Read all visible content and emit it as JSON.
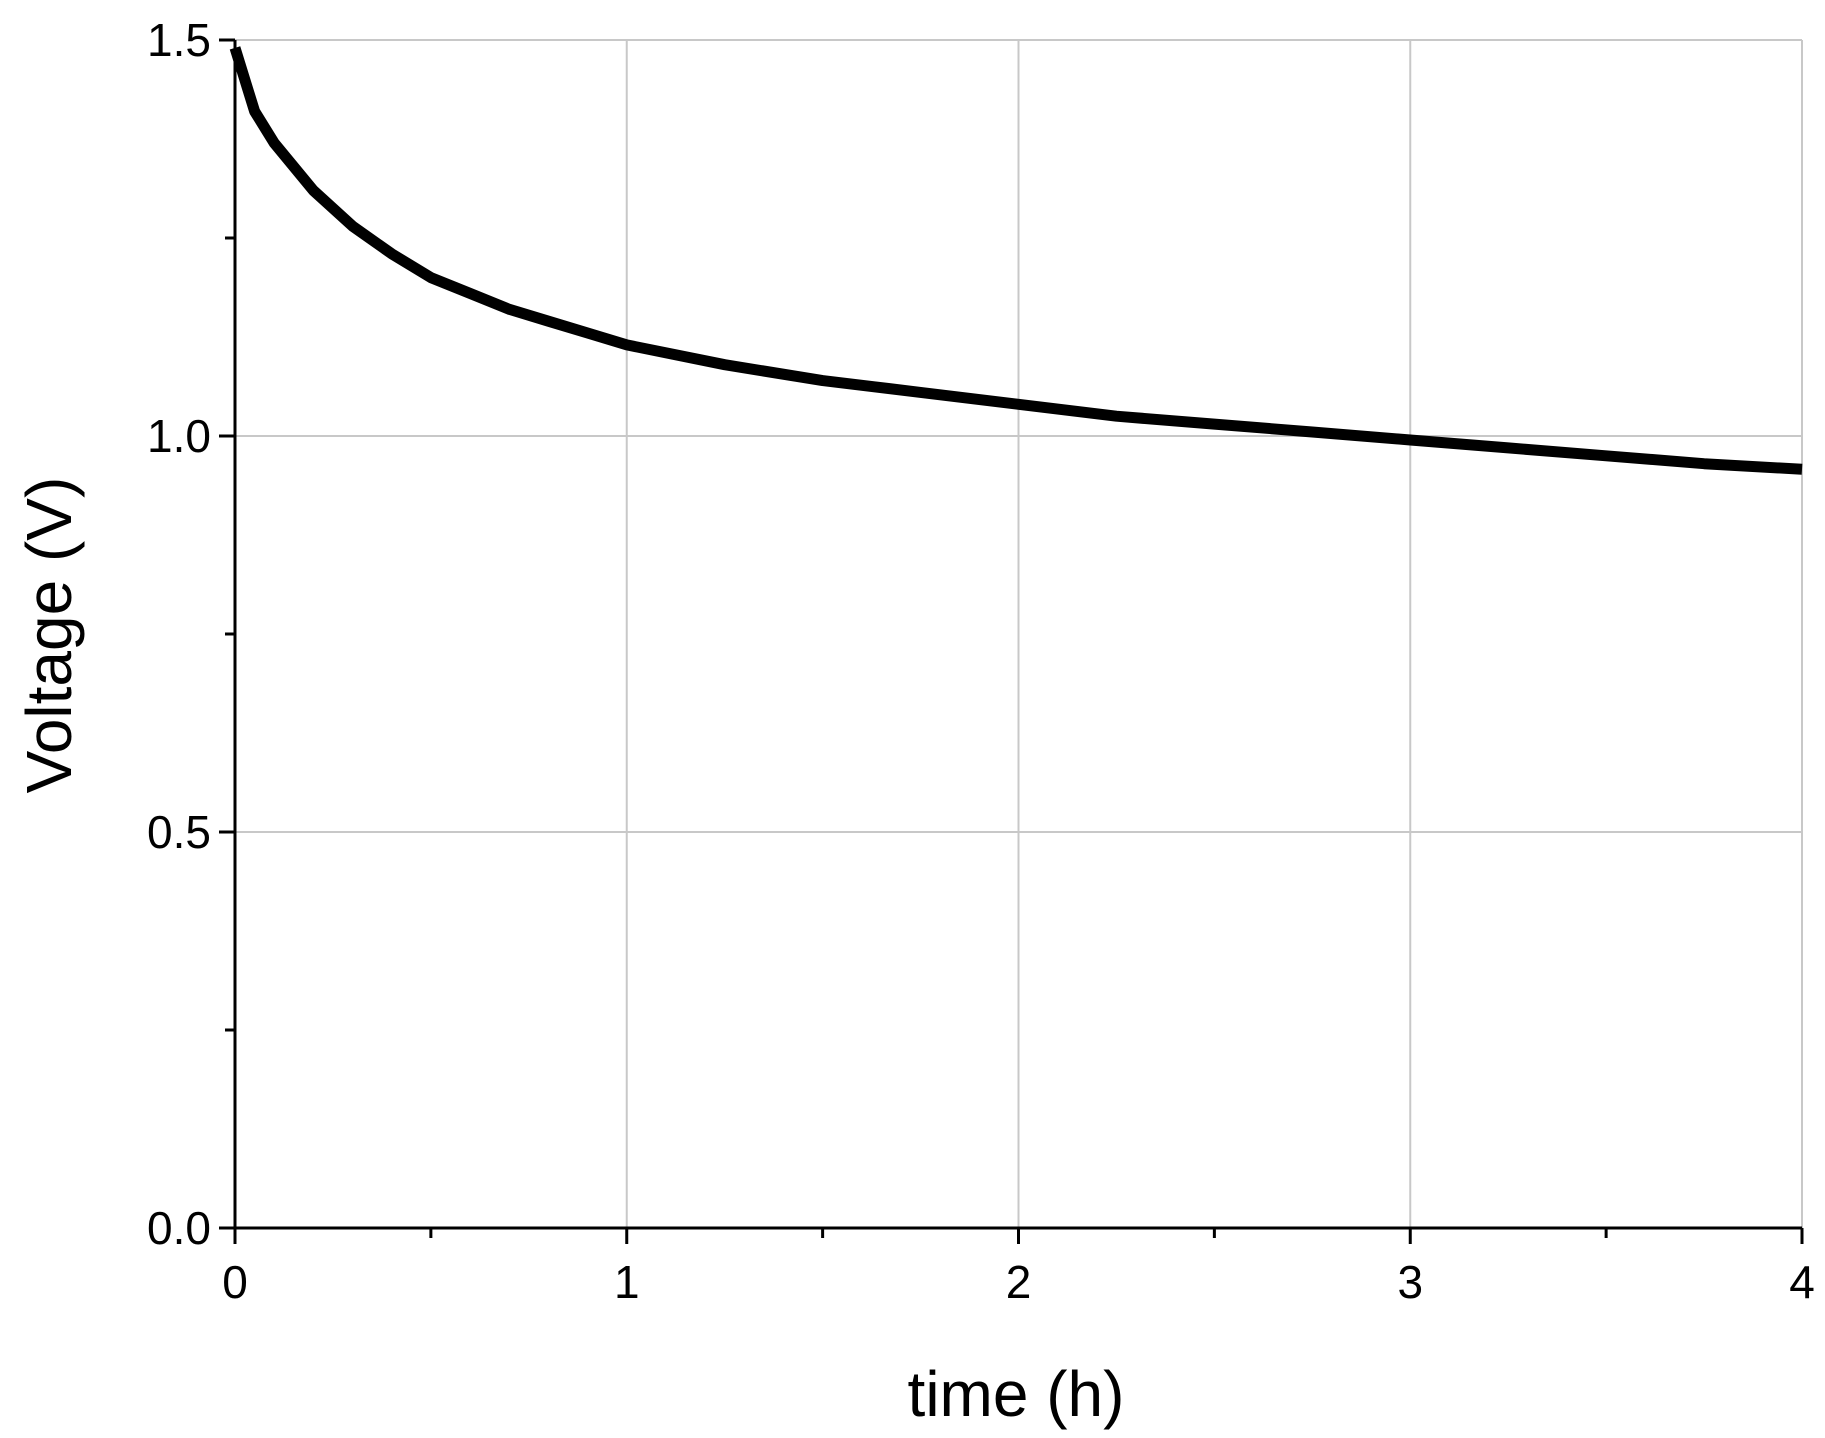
{
  "chart_data": {
    "type": "line",
    "title": "",
    "xlabel": "time (h)",
    "ylabel": "Voltage (V)",
    "xlim": [
      0,
      4
    ],
    "ylim": [
      0,
      1.5
    ],
    "x_ticks": [
      0,
      1,
      2,
      3,
      4
    ],
    "x_tick_labels": [
      "0",
      "1",
      "2",
      "3",
      "4"
    ],
    "x_minor_ticks": [
      0.5,
      1.5,
      2.5,
      3.5
    ],
    "y_ticks": [
      0.0,
      0.5,
      1.0,
      1.5
    ],
    "y_tick_labels": [
      "0.0",
      "0.5",
      "1.0",
      "1.5"
    ],
    "y_minor_ticks": [
      0.25,
      0.75,
      1.25
    ],
    "grid": true,
    "legend": "none",
    "colors": {
      "line": "#000000",
      "grid": "#c8c8c8",
      "axis": "#000000"
    },
    "series": [
      {
        "x": [
          0,
          0.05,
          0.1,
          0.2,
          0.3,
          0.4,
          0.5,
          0.6,
          0.7,
          0.8,
          0.9,
          1.0,
          1.25,
          1.5,
          1.75,
          2.0,
          2.25,
          2.5,
          2.75,
          3.0,
          3.25,
          3.5,
          3.75,
          4.0
        ],
        "y": [
          1.49,
          1.41,
          1.37,
          1.31,
          1.265,
          1.23,
          1.2,
          1.18,
          1.16,
          1.145,
          1.13,
          1.115,
          1.09,
          1.07,
          1.055,
          1.04,
          1.025,
          1.015,
          1.005,
          0.995,
          0.985,
          0.975,
          0.965,
          0.958
        ]
      }
    ]
  }
}
